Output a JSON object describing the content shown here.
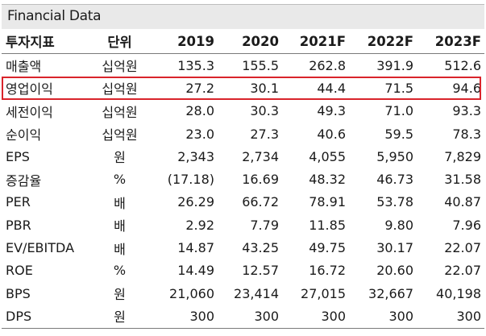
{
  "title": "Financial Data",
  "header": [
    "투자지표",
    "단위",
    "2019",
    "2020",
    "2021F",
    "2022F",
    "2023F"
  ],
  "rows": [
    {
      "label": "매출액",
      "unit": "십억원",
      "values": [
        "135.3",
        "155.5",
        "262.8",
        "391.9",
        "512.6"
      ]
    },
    {
      "label": "영업이익",
      "unit": "십억원",
      "values": [
        "27.2",
        "30.1",
        "44.4",
        "71.5",
        "94.6"
      ]
    },
    {
      "label": "세전이익",
      "unit": "십억원",
      "values": [
        "28.0",
        "30.3",
        "49.3",
        "71.0",
        "93.3"
      ]
    },
    {
      "label": "순이익",
      "unit": "십억원",
      "values": [
        "23.0",
        "27.3",
        "40.6",
        "59.5",
        "78.3"
      ]
    },
    {
      "label": "EPS",
      "unit": "원",
      "values": [
        "2,343",
        "2,734",
        "4,055",
        "5,950",
        "7,829"
      ]
    },
    {
      "label": "증감율",
      "unit": "%",
      "values": [
        "(17.18)",
        "16.69",
        "48.32",
        "46.73",
        "31.58"
      ]
    },
    {
      "label": "PER",
      "unit": "배",
      "values": [
        "26.29",
        "66.72",
        "78.91",
        "53.78",
        "40.87"
      ]
    },
    {
      "label": "PBR",
      "unit": "배",
      "values": [
        "2.92",
        "7.79",
        "11.85",
        "9.80",
        "7.96"
      ]
    },
    {
      "label": "EV/EBITDA",
      "unit": "배",
      "values": [
        "14.87",
        "43.25",
        "49.75",
        "30.17",
        "22.07"
      ]
    },
    {
      "label": "ROE",
      "unit": "%",
      "values": [
        "14.49",
        "12.57",
        "16.72",
        "20.60",
        "22.07"
      ]
    },
    {
      "label": "BPS",
      "unit": "원",
      "values": [
        "21,060",
        "23,414",
        "27,015",
        "32,667",
        "40,198"
      ]
    },
    {
      "label": "DPS",
      "unit": "원",
      "values": [
        "300",
        "300",
        "300",
        "300",
        "300"
      ]
    }
  ],
  "highlight_color": "#d9242b"
}
